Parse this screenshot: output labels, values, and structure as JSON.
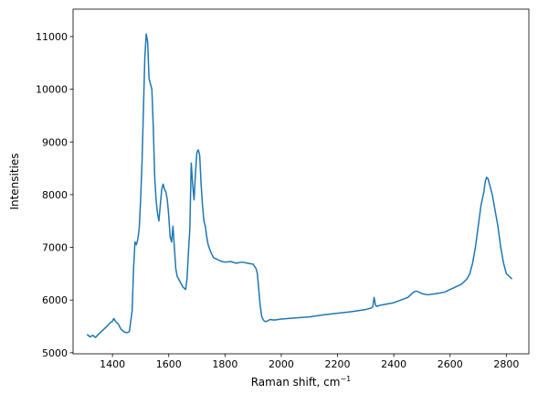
{
  "chart_data": {
    "type": "line",
    "title": "",
    "xlabel": "Raman shift, cm",
    "xlabel_superscript": "−1",
    "ylabel": "Intensities",
    "xlim": [
      1260,
      2880
    ],
    "ylim": [
      4980,
      11520
    ],
    "xticks": [
      1400,
      1600,
      1800,
      2000,
      2200,
      2400,
      2600,
      2800
    ],
    "yticks": [
      5000,
      6000,
      7000,
      8000,
      9000,
      10000,
      11000
    ],
    "grid": false,
    "legend": "none",
    "series": [
      {
        "color": "#1f77b4",
        "x": [
          1310,
          1320,
          1330,
          1340,
          1350,
          1360,
          1370,
          1380,
          1390,
          1400,
          1405,
          1410,
          1420,
          1430,
          1440,
          1450,
          1460,
          1470,
          1475,
          1480,
          1485,
          1490,
          1495,
          1500,
          1505,
          1510,
          1515,
          1520,
          1525,
          1530,
          1540,
          1545,
          1550,
          1555,
          1560,
          1565,
          1570,
          1575,
          1580,
          1585,
          1590,
          1595,
          1600,
          1605,
          1610,
          1615,
          1620,
          1625,
          1630,
          1640,
          1650,
          1660,
          1665,
          1670,
          1675,
          1680,
          1685,
          1690,
          1695,
          1700,
          1705,
          1710,
          1715,
          1720,
          1725,
          1730,
          1735,
          1740,
          1750,
          1760,
          1770,
          1780,
          1790,
          1800,
          1820,
          1840,
          1860,
          1880,
          1900,
          1910,
          1915,
          1920,
          1925,
          1930,
          1935,
          1940,
          1945,
          1950,
          1960,
          1975,
          2000,
          2050,
          2100,
          2150,
          2200,
          2250,
          2300,
          2320,
          2325,
          2330,
          2335,
          2340,
          2350,
          2400,
          2450,
          2470,
          2480,
          2490,
          2500,
          2520,
          2550,
          2580,
          2600,
          2620,
          2640,
          2650,
          2660,
          2670,
          2680,
          2690,
          2700,
          2710,
          2720,
          2725,
          2730,
          2735,
          2740,
          2750,
          2760,
          2770,
          2780,
          2790,
          2800,
          2810,
          2820
        ],
        "y": [
          5350,
          5300,
          5330,
          5290,
          5350,
          5400,
          5450,
          5500,
          5560,
          5600,
          5650,
          5600,
          5550,
          5450,
          5400,
          5380,
          5400,
          5800,
          6600,
          7100,
          7050,
          7150,
          7350,
          7900,
          8600,
          9600,
          10600,
          11050,
          10900,
          10200,
          10000,
          9300,
          8350,
          7900,
          7650,
          7500,
          7800,
          8100,
          8200,
          8100,
          8050,
          7900,
          7600,
          7200,
          7100,
          7400,
          7000,
          6600,
          6450,
          6350,
          6250,
          6200,
          6400,
          6900,
          7350,
          8600,
          8200,
          7900,
          8400,
          8800,
          8850,
          8750,
          8200,
          7800,
          7500,
          7400,
          7200,
          7050,
          6900,
          6800,
          6780,
          6750,
          6730,
          6720,
          6730,
          6700,
          6720,
          6700,
          6680,
          6600,
          6500,
          6200,
          5900,
          5700,
          5630,
          5600,
          5590,
          5600,
          5630,
          5620,
          5640,
          5660,
          5680,
          5720,
          5750,
          5780,
          5820,
          5850,
          5870,
          6050,
          5900,
          5880,
          5900,
          5950,
          6050,
          6150,
          6170,
          6150,
          6120,
          6100,
          6120,
          6150,
          6200,
          6250,
          6300,
          6350,
          6400,
          6500,
          6700,
          7000,
          7400,
          7800,
          8050,
          8250,
          8330,
          8300,
          8200,
          8000,
          7700,
          7400,
          7000,
          6700,
          6500,
          6450,
          6400
        ]
      }
    ]
  }
}
